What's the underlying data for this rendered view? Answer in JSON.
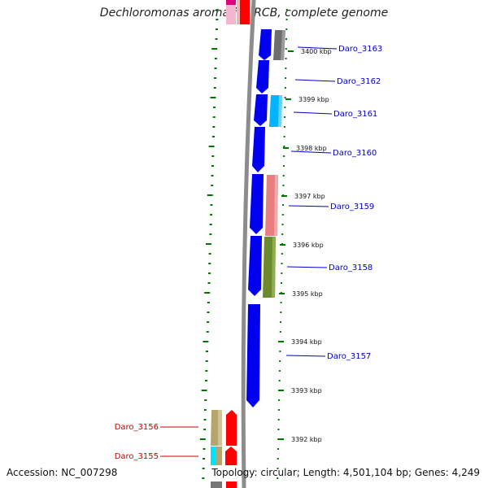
{
  "title": "Dechloromonas aromatica RCB, complete genome",
  "footer": {
    "accession": "Accession: NC_007298",
    "topology": "Topology: circular; Length: 4,501,104 bp; Genes: 4,249"
  },
  "colors": {
    "backbone": "#8c8c8c",
    "tick": "#007700",
    "gene_forward": "#0000ee",
    "gene_reverse": "#ff0000",
    "label_forward": "#0000cc",
    "label_reverse": "#cc0000"
  },
  "scale_labels": [
    "3400 kbp",
    "3399 kbp",
    "3398 kbp",
    "3397 kbp",
    "3396 kbp",
    "3395 kbp",
    "3394 kbp",
    "3393 kbp",
    "3392 kbp"
  ],
  "gene_labels": [
    {
      "name": "Daro_3163",
      "strand": "forward"
    },
    {
      "name": "Daro_3162",
      "strand": "forward"
    },
    {
      "name": "Daro_3161",
      "strand": "forward"
    },
    {
      "name": "Daro_3160",
      "strand": "forward"
    },
    {
      "name": "Daro_3159",
      "strand": "forward"
    },
    {
      "name": "Daro_3158",
      "strand": "forward"
    },
    {
      "name": "Daro_3157",
      "strand": "forward"
    },
    {
      "name": "Daro_3156",
      "strand": "reverse"
    },
    {
      "name": "Daro_3155",
      "strand": "reverse"
    }
  ]
}
